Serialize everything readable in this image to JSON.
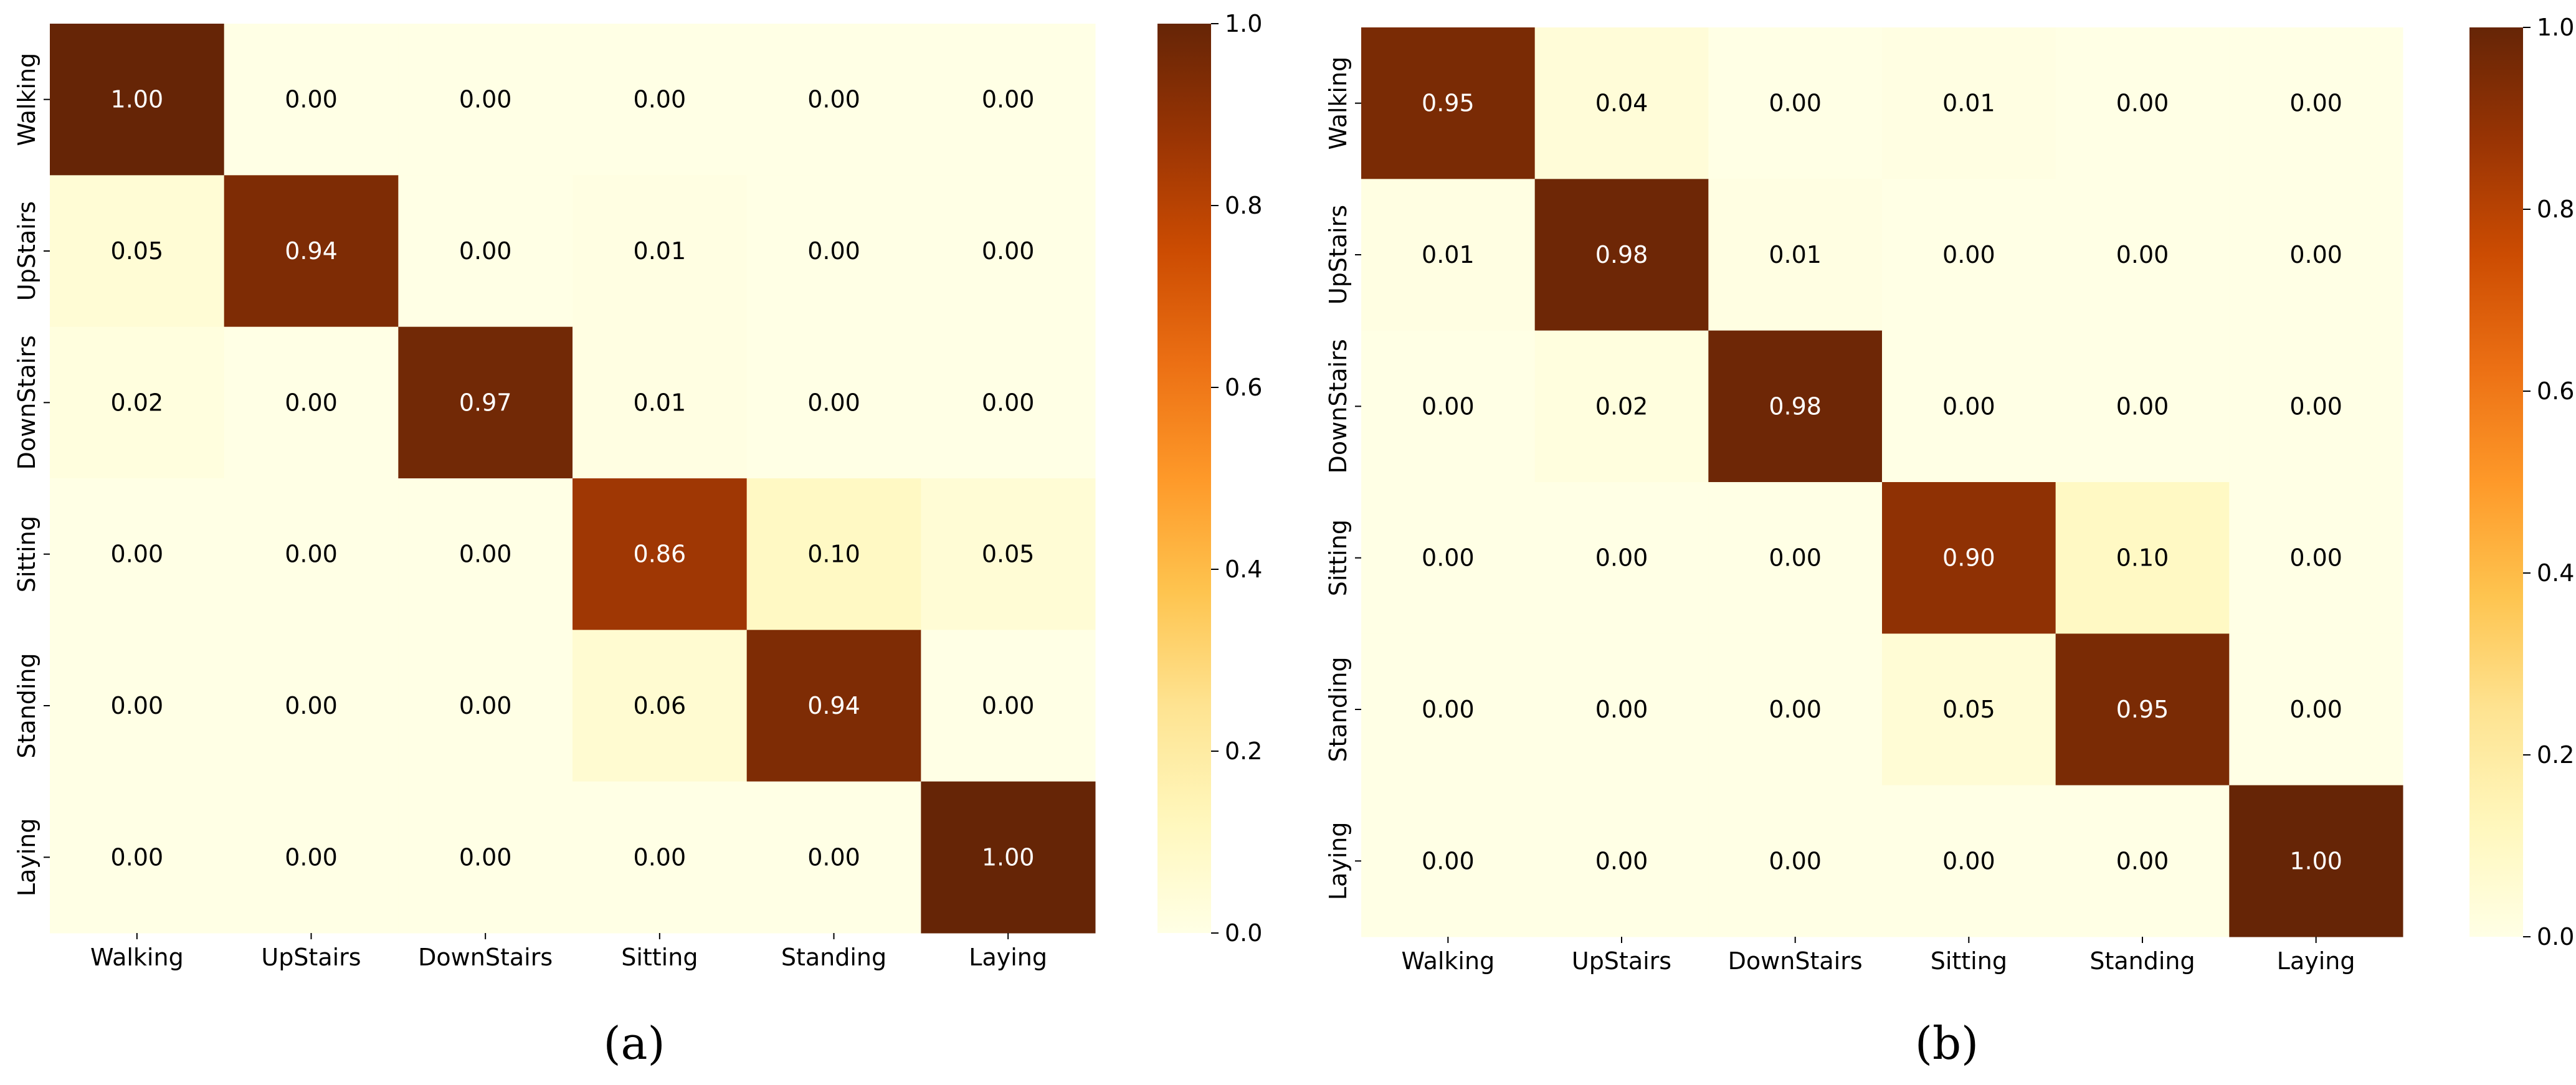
{
  "chart_data": [
    {
      "type": "heatmap",
      "caption": "(a)",
      "x_categories": [
        "Walking",
        "UpStairs",
        "DownStairs",
        "Sitting",
        "Standing",
        "Laying"
      ],
      "y_categories": [
        "Walking",
        "UpStairs",
        "DownStairs",
        "Sitting",
        "Standing",
        "Laying"
      ],
      "values": [
        [
          1.0,
          0.0,
          0.0,
          0.0,
          0.0,
          0.0
        ],
        [
          0.05,
          0.94,
          0.0,
          0.01,
          0.0,
          0.0
        ],
        [
          0.02,
          0.0,
          0.97,
          0.01,
          0.0,
          0.0
        ],
        [
          0.0,
          0.0,
          0.0,
          0.86,
          0.1,
          0.05
        ],
        [
          0.0,
          0.0,
          0.0,
          0.06,
          0.94,
          0.0
        ],
        [
          0.0,
          0.0,
          0.0,
          0.0,
          0.0,
          1.0
        ]
      ],
      "cell_labels": [
        [
          "1.00",
          "0.00",
          "0.00",
          "0.00",
          "0.00",
          "0.00"
        ],
        [
          "0.05",
          "0.94",
          "0.00",
          "0.01",
          "0.00",
          "0.00"
        ],
        [
          "0.02",
          "0.00",
          "0.97",
          "0.01",
          "0.00",
          "0.00"
        ],
        [
          "0.00",
          "0.00",
          "0.00",
          "0.86",
          "0.10",
          "0.05"
        ],
        [
          "0.00",
          "0.00",
          "0.00",
          "0.06",
          "0.94",
          "0.00"
        ],
        [
          "0.00",
          "0.00",
          "0.00",
          "0.00",
          "0.00",
          "1.00"
        ]
      ],
      "colorbar": {
        "range": [
          0.0,
          1.0
        ],
        "tick_values": [
          0.0,
          0.2,
          0.4,
          0.6,
          0.8,
          1.0
        ],
        "tick_labels": [
          "0.0",
          "0.2",
          "0.4",
          "0.6",
          "0.8",
          "1.0"
        ],
        "colormap": "YlOrBr"
      }
    },
    {
      "type": "heatmap",
      "caption": "(b)",
      "x_categories": [
        "Walking",
        "UpStairs",
        "DownStairs",
        "Sitting",
        "Standing",
        "Laying"
      ],
      "y_categories": [
        "Walking",
        "UpStairs",
        "DownStairs",
        "Sitting",
        "Standing",
        "Laying"
      ],
      "values": [
        [
          0.95,
          0.04,
          0.0,
          0.01,
          0.0,
          0.0
        ],
        [
          0.01,
          0.98,
          0.01,
          0.0,
          0.0,
          0.0
        ],
        [
          0.0,
          0.02,
          0.98,
          0.0,
          0.0,
          0.0
        ],
        [
          0.0,
          0.0,
          0.0,
          0.9,
          0.1,
          0.0
        ],
        [
          0.0,
          0.0,
          0.0,
          0.05,
          0.95,
          0.0
        ],
        [
          0.0,
          0.0,
          0.0,
          0.0,
          0.0,
          1.0
        ]
      ],
      "cell_labels": [
        [
          "0.95",
          "0.04",
          "0.00",
          "0.01",
          "0.00",
          "0.00"
        ],
        [
          "0.01",
          "0.98",
          "0.01",
          "0.00",
          "0.00",
          "0.00"
        ],
        [
          "0.00",
          "0.02",
          "0.98",
          "0.00",
          "0.00",
          "0.00"
        ],
        [
          "0.00",
          "0.00",
          "0.00",
          "0.90",
          "0.10",
          "0.00"
        ],
        [
          "0.00",
          "0.00",
          "0.00",
          "0.05",
          "0.95",
          "0.00"
        ],
        [
          "0.00",
          "0.00",
          "0.00",
          "0.00",
          "0.00",
          "1.00"
        ]
      ],
      "colorbar": {
        "range": [
          0.0,
          1.0
        ],
        "tick_values": [
          0.0,
          0.2,
          0.4,
          0.6,
          0.8,
          1.0
        ],
        "tick_labels": [
          "0.0",
          "0.2",
          "0.4",
          "0.6",
          "0.8",
          "1.0"
        ],
        "colormap": "YlOrBr"
      }
    }
  ],
  "colors": {
    "colormap_stops": [
      "#ffffe5",
      "#fff7bc",
      "#fee391",
      "#fec44f",
      "#fe9929",
      "#ec7014",
      "#cc4c02",
      "#993404",
      "#662506"
    ],
    "text_dark": "#000000",
    "text_light": "#ffffff"
  }
}
